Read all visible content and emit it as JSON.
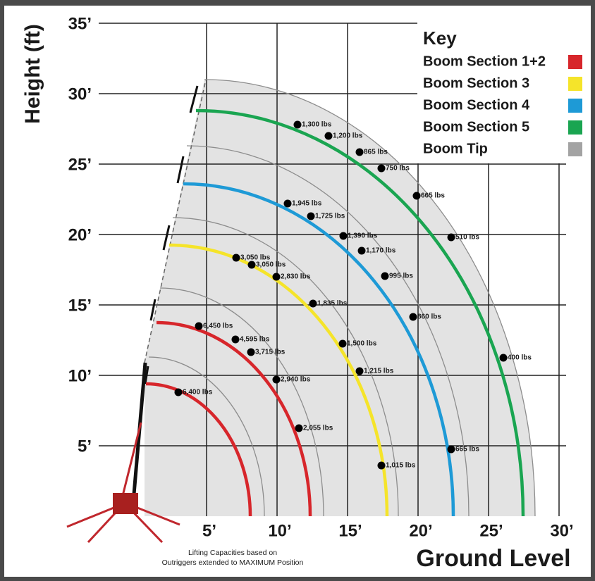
{
  "chart_data": {
    "type": "scatter",
    "ylabel": "Height (ft)",
    "xlabel": "Ground Level",
    "legend_title": "Key",
    "note": [
      "Lifting Capacities based on",
      "Outriggers extended to MAXIMUM Position"
    ],
    "xlim": [
      -2.65,
      30.5
    ],
    "ylim": [
      0,
      35
    ],
    "xticks": [
      {
        "value": 5,
        "label": "5’"
      },
      {
        "value": 10,
        "label": "10’"
      },
      {
        "value": 15,
        "label": "15’"
      },
      {
        "value": 20,
        "label": "20’"
      },
      {
        "value": 25,
        "label": "25’"
      },
      {
        "value": 30,
        "label": "30’"
      }
    ],
    "yticks": [
      {
        "value": 5,
        "label": "5’"
      },
      {
        "value": 10,
        "label": "10’"
      },
      {
        "value": 15,
        "label": "15’"
      },
      {
        "value": 20,
        "label": "20’"
      },
      {
        "value": 25,
        "label": "25’"
      },
      {
        "value": 30,
        "label": "30’"
      },
      {
        "value": 35,
        "label": "35’"
      }
    ],
    "grid": true,
    "legend": "upper right",
    "series": [
      {
        "name": "Boom Section 1+2",
        "color": "#d7262b",
        "x": [
          3.0,
          4.45,
          7.05,
          8.15,
          9.95,
          11.55
        ],
        "y": [
          8.8,
          13.5,
          12.55,
          11.65,
          9.7,
          6.25
        ],
        "values": [
          6400,
          6450,
          4595,
          3715,
          2940,
          2055
        ],
        "value_labels": [
          "6,400 lbs",
          "6,450 lbs",
          "4,595 lbs",
          "3,715 lbs",
          "2,940 lbs",
          "2,055 lbs"
        ],
        "arcs": [
          {
            "x": [
              0.7,
              8.1
            ],
            "y": [
              9.4,
              0
            ]
          },
          {
            "x": [
              1.45,
              12.35
            ],
            "y": [
              13.75,
              0
            ]
          }
        ]
      },
      {
        "name": "Boom Section 3",
        "color": "#f5e42a",
        "x": [
          7.1,
          8.2,
          9.95,
          12.55,
          14.65,
          15.85,
          17.4
        ],
        "y": [
          18.35,
          17.85,
          17.0,
          15.1,
          12.25,
          10.3,
          3.6
        ],
        "values": [
          3050,
          3050,
          2830,
          1835,
          1500,
          1215,
          1015
        ],
        "value_labels": [
          "3,050 lbs",
          "3,050 lbs",
          "2,830 lbs",
          "1,835 lbs",
          "1,500 lbs",
          "1,215 lbs",
          "1,015 lbs"
        ],
        "arcs": [
          {
            "x": [
              2.35,
              17.8
            ],
            "y": [
              19.25,
              0
            ]
          }
        ]
      },
      {
        "name": "Boom Section 4",
        "color": "#1e9ad6",
        "x": [
          10.75,
          12.4,
          14.7,
          16.0,
          17.65,
          19.65,
          22.35
        ],
        "y": [
          22.2,
          21.3,
          19.9,
          18.85,
          17.05,
          14.15,
          4.75
        ],
        "values": [
          1945,
          1725,
          1390,
          1170,
          995,
          860,
          665
        ],
        "value_labels": [
          "1,945 lbs",
          "1,725 lbs",
          "1,390 lbs",
          "1,170 lbs",
          "995 lbs",
          "860 lbs",
          "665 lbs"
        ],
        "arcs": [
          {
            "x": [
              3.35,
              22.5
            ],
            "y": [
              23.6,
              0
            ]
          }
        ]
      },
      {
        "name": "Boom Section 5",
        "color": "#1aa551",
        "x": [
          11.45,
          13.65,
          15.85,
          17.4,
          19.9,
          22.35,
          26.05
        ],
        "y": [
          27.8,
          27.0,
          25.85,
          24.7,
          22.75,
          19.8,
          11.25
        ],
        "values": [
          1300,
          1200,
          865,
          750,
          665,
          510,
          400
        ],
        "value_labels": [
          "1,300 lbs",
          "1,200 lbs",
          "865 lbs",
          "750 lbs",
          "665 lbs",
          "510 lbs",
          "400 lbs"
        ],
        "arcs": [
          {
            "x": [
              4.25,
              27.45
            ],
            "y": [
              28.8,
              0
            ]
          }
        ]
      },
      {
        "name": "Boom Tip",
        "color": "#a3a3a3",
        "arcs": [
          {
            "x": [
              0.9,
              9.1
            ],
            "y": [
              11.3,
              0
            ]
          },
          {
            "x": [
              1.7,
              13.3
            ],
            "y": [
              16.2,
              0
            ]
          },
          {
            "x": [
              2.6,
              18.6
            ],
            "y": [
              21.2,
              0
            ]
          },
          {
            "x": [
              3.6,
              23.6
            ],
            "y": [
              26.3,
              0
            ]
          },
          {
            "x": [
              4.85,
              28.3
            ],
            "y": [
              31.0,
              0
            ]
          }
        ]
      }
    ]
  }
}
